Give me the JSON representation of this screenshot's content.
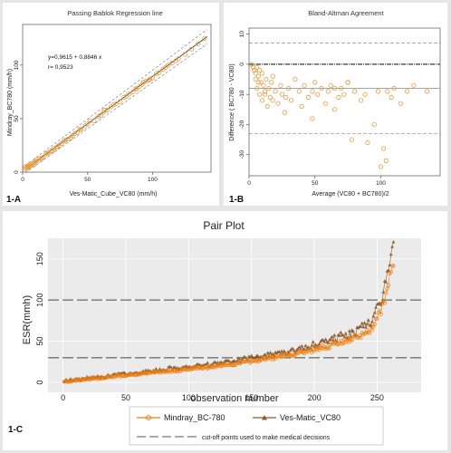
{
  "chart_data": [
    {
      "type": "scatter",
      "panel_label": "1-A",
      "title": "Passing Bablok Regression line",
      "xlabel": "Ves-Matic_Cube_VC80 (mm/h)",
      "ylabel": "Mindray_BC780 (mm/h)",
      "xlim": [
        0,
        145
      ],
      "ylim": [
        0,
        138
      ],
      "xticks": [
        0,
        50,
        100
      ],
      "yticks": [
        0,
        50,
        100
      ],
      "annotations": [
        "y=0,9615 + 0,8846 x",
        "r= 0,9523"
      ],
      "regression": {
        "intercept": 0.9615,
        "slope": 0.8846
      },
      "x": [
        2,
        3,
        4,
        5,
        5,
        6,
        7,
        8,
        9,
        10,
        12,
        14,
        16,
        18,
        20,
        22,
        24,
        26,
        28,
        30,
        32,
        35,
        38,
        40,
        42,
        45,
        48,
        50,
        55,
        58,
        60,
        62,
        65,
        68,
        70,
        75,
        80,
        82,
        85,
        88,
        90,
        92,
        95,
        98,
        100,
        103,
        105,
        108,
        110,
        112,
        115,
        118,
        120,
        125,
        130,
        135,
        140,
        2,
        4,
        6,
        9,
        11,
        15,
        19,
        23,
        27,
        33,
        37,
        44,
        52,
        63,
        72,
        78,
        87,
        93,
        97
      ],
      "y": [
        3,
        4,
        4,
        5,
        6,
        6,
        7,
        8,
        9,
        10,
        11,
        13,
        14,
        17,
        18,
        20,
        22,
        23,
        25,
        27,
        29,
        31,
        34,
        36,
        37,
        40,
        43,
        45,
        48,
        52,
        53,
        56,
        58,
        61,
        63,
        66,
        71,
        73,
        75,
        78,
        80,
        82,
        85,
        87,
        88,
        92,
        93,
        96,
        98,
        100,
        102,
        104,
        106,
        110,
        115,
        120,
        125,
        5,
        6,
        8,
        7,
        12,
        13,
        18,
        20,
        24,
        30,
        32,
        40,
        48,
        58,
        64,
        70,
        78,
        84,
        86
      ]
    },
    {
      "type": "scatter",
      "panel_label": "1-B",
      "title": "Bland-Altman Agreement",
      "xlabel": "Average (VC80 + BC780)/2",
      "ylabel": "Difference ( BC780 - VC80)",
      "xlim": [
        0,
        145
      ],
      "ylim": [
        -37,
        12
      ],
      "xticks": [
        0,
        50,
        100
      ],
      "yticks": [
        -30,
        -20,
        -10,
        0,
        10
      ],
      "lines": {
        "mean": -8,
        "upper_loa": 7,
        "lower_loa": -23,
        "zero": 0
      },
      "x": [
        2,
        3,
        4,
        5,
        5,
        6,
        6,
        7,
        8,
        8,
        9,
        10,
        10,
        11,
        12,
        13,
        14,
        15,
        16,
        17,
        18,
        20,
        22,
        24,
        25,
        27,
        30,
        32,
        35,
        38,
        40,
        42,
        45,
        48,
        50,
        52,
        55,
        58,
        60,
        62,
        65,
        68,
        70,
        72,
        75,
        78,
        80,
        85,
        90,
        95,
        100,
        102,
        104,
        105,
        108,
        110,
        115,
        120,
        125,
        135,
        4,
        7,
        12,
        18,
        28,
        48,
        65,
        75,
        88,
        98
      ],
      "y": [
        0,
        -1,
        -2,
        -3,
        -5,
        -1,
        -8,
        -4,
        -2,
        -10,
        -6,
        -3,
        -12,
        -7,
        -9,
        -5,
        -14,
        -8,
        -11,
        -6,
        -4,
        -9,
        -13,
        -7,
        -10,
        -16,
        -8,
        -12,
        -5,
        -9,
        -14,
        -7,
        -11,
        -18,
        -6,
        -10,
        -8,
        -13,
        -9,
        -7,
        -15,
        -11,
        -8,
        -10,
        -6,
        -25,
        -9,
        -12,
        -26,
        -20,
        -34,
        -28,
        -32,
        -9,
        -11,
        -8,
        -13,
        -9,
        -7,
        -9,
        -2,
        -6,
        -10,
        -12,
        -11,
        -9,
        -8,
        -6,
        -10,
        -9
      ]
    },
    {
      "type": "line",
      "panel_label": "1-C",
      "title": "Pair Plot",
      "xlabel": "observation number",
      "ylabel": "ESR(mmh)",
      "xlim": [
        -12,
        285
      ],
      "ylim": [
        -12,
        175
      ],
      "xticks": [
        0,
        50,
        100,
        150,
        200,
        250
      ],
      "yticks": [
        0,
        50,
        100,
        150
      ],
      "reference_lines": [
        30,
        100
      ],
      "series": [
        {
          "name": "Mindray_BC-780",
          "color": "#f07f10"
        },
        {
          "name": "Ves-Matic_VC80",
          "color": "#8b5a2b"
        }
      ],
      "series_anchors": {
        "x": [
          1,
          25,
          50,
          75,
          100,
          125,
          150,
          175,
          200,
          220,
          235,
          245,
          250,
          255,
          260,
          263
        ],
        "y": [
          1,
          5,
          9,
          13,
          17,
          21,
          27,
          33,
          41,
          50,
          57,
          68,
          80,
          100,
          130,
          148
        ]
      },
      "legend_note": "cut-off points used to make medical decisions"
    }
  ]
}
